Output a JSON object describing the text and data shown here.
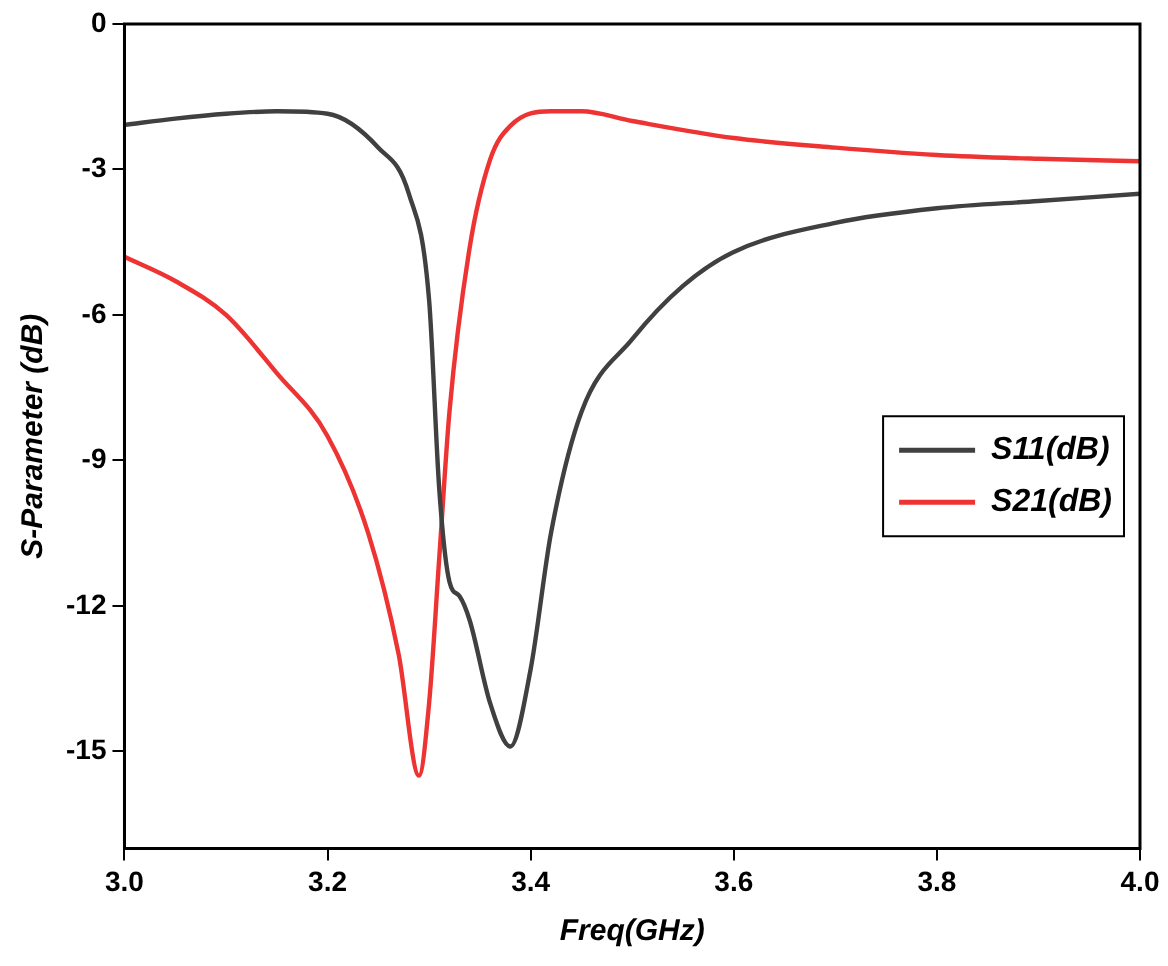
{
  "chart_data": {
    "type": "line",
    "xlabel": "Freq(GHz)",
    "ylabel": "S-Parameter (dB)",
    "xlim": [
      3.0,
      4.0
    ],
    "xticks": [
      {
        "value": 3.0,
        "label": "3.0"
      },
      {
        "value": 3.2,
        "label": "3.2"
      },
      {
        "value": 3.4,
        "label": "3.4"
      },
      {
        "value": 3.6,
        "label": "3.6"
      },
      {
        "value": 3.8,
        "label": "3.8"
      },
      {
        "value": 4.0,
        "label": "4.0"
      }
    ],
    "ylim": [
      -17,
      0
    ],
    "yticks": [
      -15,
      -12,
      -9,
      -6,
      -3,
      0
    ],
    "grid": false,
    "legend": "right",
    "marker": "none",
    "line_style": "solid",
    "series": [
      {
        "name": "S11(dB)",
        "color": "#404040",
        "x": [
          3.0,
          3.05,
          3.1,
          3.15,
          3.2,
          3.25,
          3.28,
          3.3,
          3.31,
          3.32,
          3.33,
          3.34,
          3.36,
          3.38,
          3.4,
          3.42,
          3.45,
          3.5,
          3.55,
          3.6,
          3.7,
          3.8,
          3.9,
          4.0
        ],
        "values": [
          -2.08,
          -1.95,
          -1.85,
          -1.8,
          -1.85,
          -2.55,
          -3.5,
          -5.7,
          -9.6,
          -11.5,
          -11.8,
          -12.3,
          -14.0,
          -14.9,
          -13.3,
          -10.5,
          -8.0,
          -6.5,
          -5.4,
          -4.7,
          -4.1,
          -3.8,
          -3.65,
          -3.5
        ]
      },
      {
        "name": "S21(dB)",
        "color": "#ee3333",
        "x": [
          3.0,
          3.05,
          3.1,
          3.15,
          3.2,
          3.24,
          3.27,
          3.29,
          3.3,
          3.31,
          3.32,
          3.34,
          3.36,
          3.38,
          3.42,
          3.45,
          3.5,
          3.6,
          3.7,
          3.8,
          3.9,
          4.0
        ],
        "values": [
          -4.8,
          -5.3,
          -6.0,
          -7.2,
          -8.5,
          -10.5,
          -13.0,
          -15.5,
          -14.0,
          -11.0,
          -8.0,
          -4.6,
          -2.8,
          -2.1,
          -1.8,
          -1.8,
          -2.0,
          -2.35,
          -2.55,
          -2.7,
          -2.78,
          -2.83
        ]
      }
    ]
  }
}
